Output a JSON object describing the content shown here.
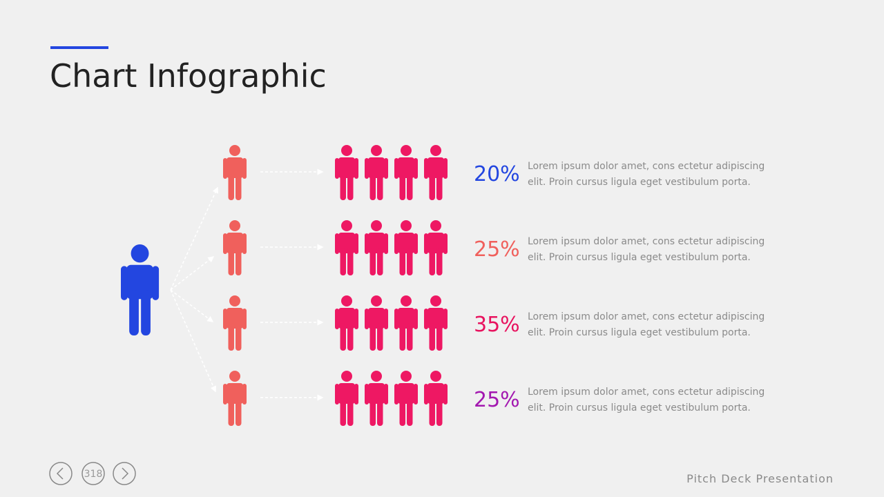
{
  "header": {
    "title": "Chart Infographic"
  },
  "rows": [
    {
      "percent": "20%",
      "lines": [
        "Lorem ipsum dolor amet, cons ectetur adipiscing",
        "elit. Proin cursus ligula eget vestibulum porta."
      ]
    },
    {
      "percent": "25%",
      "lines": [
        "Lorem ipsum dolor amet, cons ectetur adipiscing",
        "elit. Proin cursus ligula eget vestibulum porta."
      ]
    },
    {
      "percent": "35%",
      "lines": [
        "Lorem ipsum dolor amet, cons ectetur adipiscing",
        "elit. Proin cursus ligula eget vestibulum porta."
      ]
    },
    {
      "percent": "25%",
      "lines": [
        "Lorem ipsum dolor amet, cons ectetur adipiscing",
        "elit. Proin cursus ligula eget vestibulum porta."
      ]
    }
  ],
  "footer": {
    "page": "318",
    "brand": "Pitch Deck Presentation"
  }
}
